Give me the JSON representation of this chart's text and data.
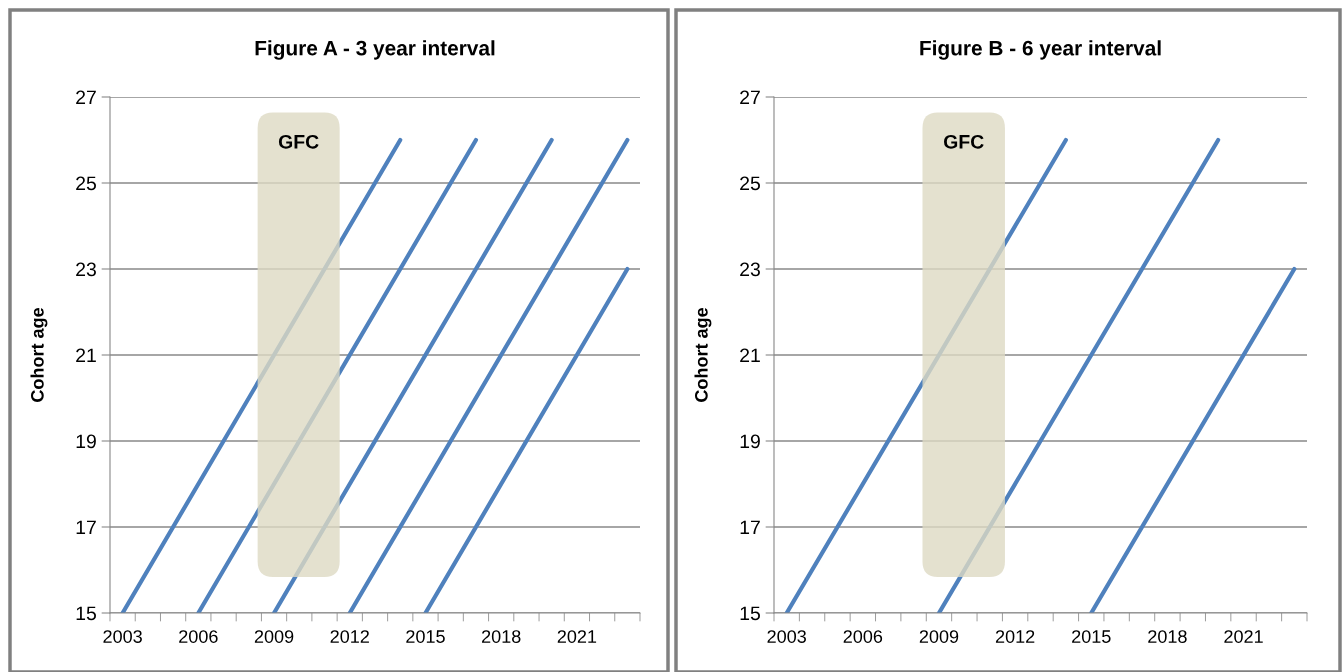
{
  "chart_data": [
    {
      "type": "line",
      "title": "Figure A - 3 year interval",
      "ylabel": "Cohort age",
      "series": [
        {
          "color": "#4f81bd",
          "x": [
            2003,
            2014
          ],
          "values": [
            15,
            26
          ]
        },
        {
          "color": "#4f81bd",
          "x": [
            2006,
            2017
          ],
          "values": [
            15,
            26
          ]
        },
        {
          "color": "#4f81bd",
          "x": [
            2009,
            2020
          ],
          "values": [
            15,
            26
          ]
        },
        {
          "color": "#4f81bd",
          "x": [
            2012,
            2023
          ],
          "values": [
            15,
            26
          ]
        },
        {
          "color": "#4f81bd",
          "x": [
            2015,
            2023
          ],
          "values": [
            15,
            23
          ]
        }
      ],
      "bands": [
        {
          "axis": "x",
          "from": 2008.35,
          "to": 2011.6,
          "label": "GFC",
          "color": "#ddd9c3"
        }
      ],
      "xlim": [
        2002.5,
        2023.5
      ],
      "xticks": [
        2003,
        2006,
        2009,
        2012,
        2015,
        2018,
        2021,
        {
          "value": 2002.5,
          "label": null
        },
        {
          "value": 2003.5,
          "label": null
        },
        {
          "value": 2004.5,
          "label": null
        },
        {
          "value": 2005.5,
          "label": null
        },
        {
          "value": 2006.5,
          "label": null
        },
        {
          "value": 2007.5,
          "label": null
        },
        {
          "value": 2008.5,
          "label": null
        },
        {
          "value": 2009.5,
          "label": null
        },
        {
          "value": 2010.5,
          "label": null
        },
        {
          "value": 2011.5,
          "label": null
        },
        {
          "value": 2012.5,
          "label": null
        },
        {
          "value": 2013.5,
          "label": null
        },
        {
          "value": 2014.5,
          "label": null
        },
        {
          "value": 2015.5,
          "label": null
        },
        {
          "value": 2016.5,
          "label": null
        },
        {
          "value": 2017.5,
          "label": null
        },
        {
          "value": 2018.5,
          "label": null
        },
        {
          "value": 2019.5,
          "label": null
        },
        {
          "value": 2020.5,
          "label": null
        },
        {
          "value": 2021.5,
          "label": null
        },
        {
          "value": 2022.5,
          "label": null
        },
        {
          "value": 2023.5,
          "label": null
        }
      ],
      "ylim": [
        15,
        27
      ],
      "yticks": [
        15,
        17,
        19,
        21,
        23,
        25,
        27
      ],
      "grid": "y",
      "marker": "none",
      "line_style": "solid"
    },
    {
      "type": "line",
      "title": "Figure B - 6 year interval",
      "ylabel": "Cohort age",
      "series": [
        {
          "color": "#4f81bd",
          "x": [
            2003,
            2014
          ],
          "values": [
            15,
            26
          ]
        },
        {
          "color": "#4f81bd",
          "x": [
            2009,
            2020
          ],
          "values": [
            15,
            26
          ]
        },
        {
          "color": "#4f81bd",
          "x": [
            2015,
            2023
          ],
          "values": [
            15,
            23
          ]
        }
      ],
      "bands": [
        {
          "axis": "x",
          "from": 2008.35,
          "to": 2011.6,
          "label": "GFC",
          "color": "#ddd9c3"
        }
      ],
      "xlim": [
        2002.5,
        2023.5
      ],
      "xticks": [
        2003,
        2006,
        2009,
        2012,
        2015,
        2018,
        2021,
        {
          "value": 2002.5,
          "label": null
        },
        {
          "value": 2003.5,
          "label": null
        },
        {
          "value": 2004.5,
          "label": null
        },
        {
          "value": 2005.5,
          "label": null
        },
        {
          "value": 2006.5,
          "label": null
        },
        {
          "value": 2007.5,
          "label": null
        },
        {
          "value": 2008.5,
          "label": null
        },
        {
          "value": 2009.5,
          "label": null
        },
        {
          "value": 2010.5,
          "label": null
        },
        {
          "value": 2011.5,
          "label": null
        },
        {
          "value": 2012.5,
          "label": null
        },
        {
          "value": 2013.5,
          "label": null
        },
        {
          "value": 2014.5,
          "label": null
        },
        {
          "value": 2015.5,
          "label": null
        },
        {
          "value": 2016.5,
          "label": null
        },
        {
          "value": 2017.5,
          "label": null
        },
        {
          "value": 2018.5,
          "label": null
        },
        {
          "value": 2019.5,
          "label": null
        },
        {
          "value": 2020.5,
          "label": null
        },
        {
          "value": 2021.5,
          "label": null
        },
        {
          "value": 2022.5,
          "label": null
        },
        {
          "value": 2023.5,
          "label": null
        }
      ],
      "ylim": [
        15,
        27
      ],
      "yticks": [
        15,
        17,
        19,
        21,
        23,
        25,
        27
      ],
      "grid": "y",
      "marker": "none",
      "line_style": "solid"
    }
  ]
}
